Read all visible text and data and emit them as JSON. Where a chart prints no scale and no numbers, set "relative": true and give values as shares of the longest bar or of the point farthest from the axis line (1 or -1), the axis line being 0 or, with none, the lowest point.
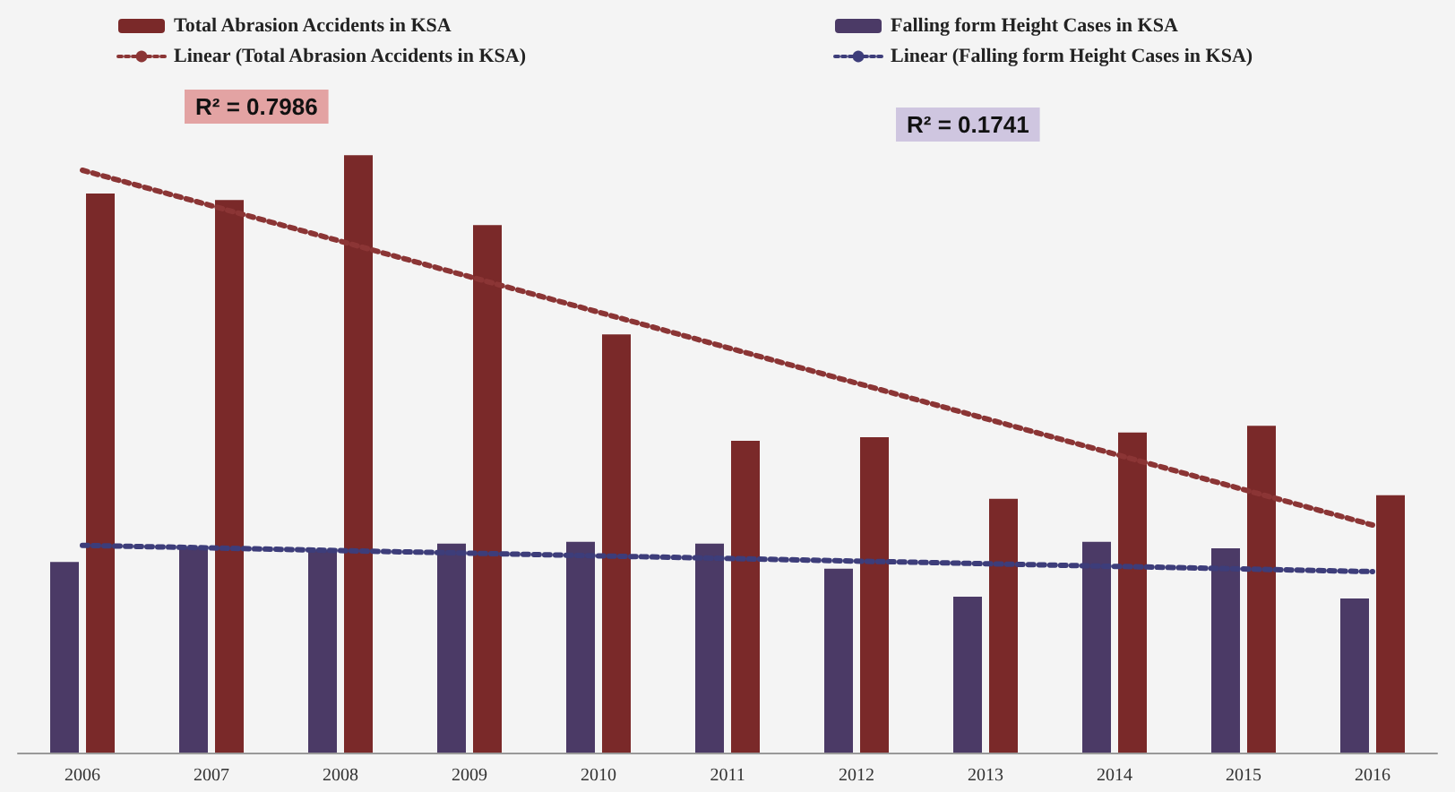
{
  "chart_data": {
    "type": "bar",
    "relative": true,
    "legend": "top",
    "categories": [
      "2006",
      "2007",
      "2008",
      "2009",
      "2010",
      "2011",
      "2012",
      "2013",
      "2014",
      "2015",
      "2016"
    ],
    "series": [
      {
        "name": "Falling form Height Cases in KSA",
        "color": "#4b3a66",
        "values": [
          0.319,
          0.344,
          0.339,
          0.35,
          0.353,
          0.35,
          0.308,
          0.261,
          0.353,
          0.342,
          0.258
        ]
      },
      {
        "name": "Linear (Falling form Height Cases in KSA)",
        "type": "line",
        "color": "#3d3d7a",
        "line_style": "dotted",
        "marker": "none",
        "values": [
          0.347,
          null,
          null,
          null,
          null,
          null,
          null,
          null,
          null,
          null,
          0.303
        ]
      },
      {
        "name": "Total Abrasion Accidents in KSA",
        "color": "#7a2929",
        "values": [
          0.936,
          0.925,
          1,
          0.883,
          0.7,
          0.522,
          0.528,
          0.425,
          0.536,
          0.547,
          0.431
        ]
      },
      {
        "name": "Linear (Total Abrasion Accidents in KSA)",
        "type": "line",
        "color": "#8b3535",
        "line_style": "dotted",
        "marker": "none",
        "values": [
          0.975,
          null,
          null,
          null,
          null,
          null,
          null,
          null,
          null,
          null,
          0.381
        ]
      }
    ],
    "annotations": [
      "R² = 0.7986",
      "R² = 0.1741"
    ]
  }
}
